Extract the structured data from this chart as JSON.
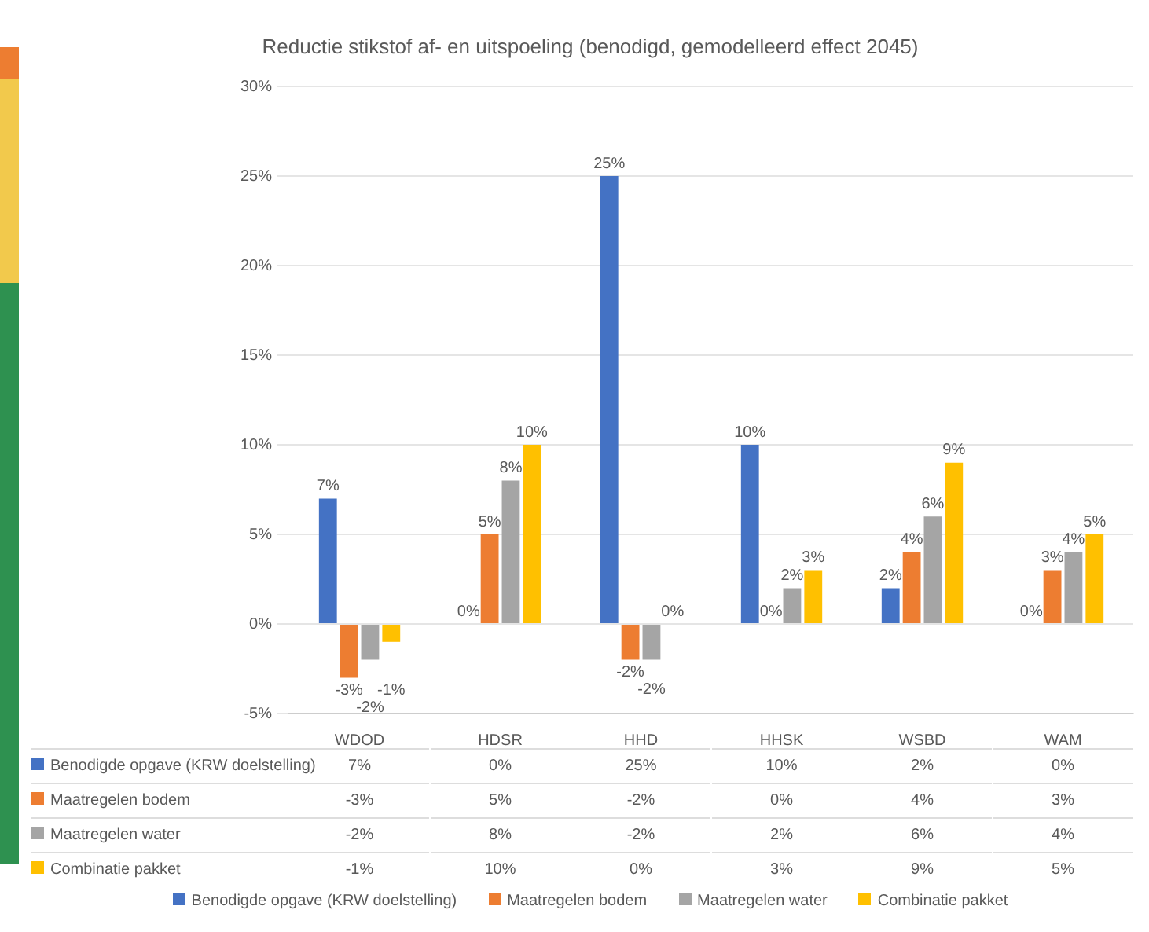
{
  "chart_data": {
    "type": "bar",
    "title": "Reductie stikstof af- en uitspoeling (benodigd, gemodelleerd effect 2045)",
    "categories": [
      "WDOD",
      "HDSR",
      "HHD",
      "HHSK",
      "WSBD",
      "WAM"
    ],
    "series": [
      {
        "name": "Benodigde opgave (KRW doelstelling)",
        "color": "#4472c4",
        "values": [
          7,
          0,
          25,
          10,
          2,
          0
        ],
        "value_labels": [
          "7%",
          "0%",
          "25%",
          "10%",
          "2%",
          "0%"
        ]
      },
      {
        "name": "Maatregelen bodem",
        "color": "#ed7d31",
        "values": [
          -3,
          5,
          -2,
          0,
          4,
          3
        ],
        "value_labels": [
          "-3%",
          "5%",
          "-2%",
          "0%",
          "4%",
          "3%"
        ]
      },
      {
        "name": "Maatregelen water",
        "color": "#a5a5a5",
        "values": [
          -2,
          8,
          -2,
          2,
          6,
          4
        ],
        "value_labels": [
          "-2%",
          "8%",
          "-2%",
          "2%",
          "6%",
          "4%"
        ]
      },
      {
        "name": "Combinatie pakket",
        "color": "#ffc000",
        "values": [
          -1,
          10,
          0,
          3,
          9,
          5
        ],
        "value_labels": [
          "-1%",
          "10%",
          "0%",
          "3%",
          "9%",
          "5%"
        ]
      }
    ],
    "ylim": [
      -5,
      30
    ],
    "yticks": [
      {
        "value": -5,
        "label": "-5%"
      },
      {
        "value": 0,
        "label": "0%"
      },
      {
        "value": 5,
        "label": "5%"
      },
      {
        "value": 10,
        "label": "10%"
      },
      {
        "value": 15,
        "label": "15%"
      },
      {
        "value": 20,
        "label": "20%"
      },
      {
        "value": 25,
        "label": "25%"
      },
      {
        "value": 30,
        "label": "30%"
      }
    ],
    "grid": "y",
    "legend": "bottom"
  }
}
